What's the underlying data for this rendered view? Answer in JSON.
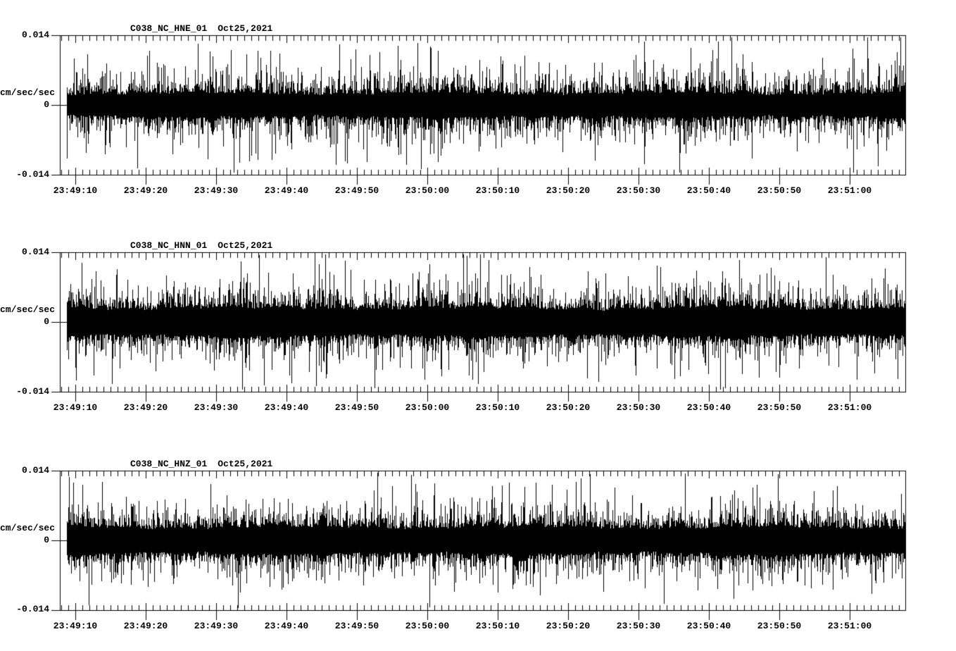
{
  "page": {
    "background": "#ffffff",
    "foreground": "#000000"
  },
  "chart_data": {
    "type": "line",
    "subtype": "seismogram-noise",
    "panel_count": 3,
    "ylabel": "cm/sec/sec",
    "ylim": [
      -0.014,
      0.014
    ],
    "yticks": [
      {
        "value": 0.014,
        "label": "0.014"
      },
      {
        "value": 0,
        "label": "0"
      },
      {
        "value": -0.014,
        "label": "-0.014"
      }
    ],
    "x_axis": {
      "start_time": "23:49:08",
      "end_time": "23:51:08",
      "minor_tick_s": 1,
      "major_tick_s": 10,
      "xtick_labels": [
        "23:49:10",
        "23:49:20",
        "23:49:30",
        "23:49:40",
        "23:49:50",
        "23:50:00",
        "23:50:10",
        "23:50:20",
        "23:50:30",
        "23:50:40",
        "23:50:50",
        "23:51:00"
      ]
    },
    "panels": [
      {
        "station": "C038_NC_HNE_01",
        "date": "Oct25,2021",
        "trace": {
          "start_offset_s": 0.8,
          "end_offset_s": 119.8,
          "baseline_amp": 0.00226,
          "spike_scale": 0.00191,
          "max_peak": 0.0136,
          "max_peak_offset_s": 114.5,
          "seed": 20211025
        }
      },
      {
        "station": "C038_NC_HNN_01",
        "date": "Oct25,2021",
        "trace": {
          "start_offset_s": 0.8,
          "end_offset_s": 119.8,
          "baseline_amp": 0.00269,
          "spike_scale": 0.00184,
          "max_peak": 0.0132,
          "max_peak_offset_s": 36.0,
          "seed": 20211026
        }
      },
      {
        "station": "C038_NC_HNZ_01",
        "date": "Oct25,2021",
        "trace": {
          "start_offset_s": 0.8,
          "end_offset_s": 119.8,
          "baseline_amp": 0.00255,
          "spike_scale": 0.00184,
          "max_peak": 0.0132,
          "max_peak_offset_s": 49.7,
          "seed": 20211027
        }
      }
    ]
  }
}
